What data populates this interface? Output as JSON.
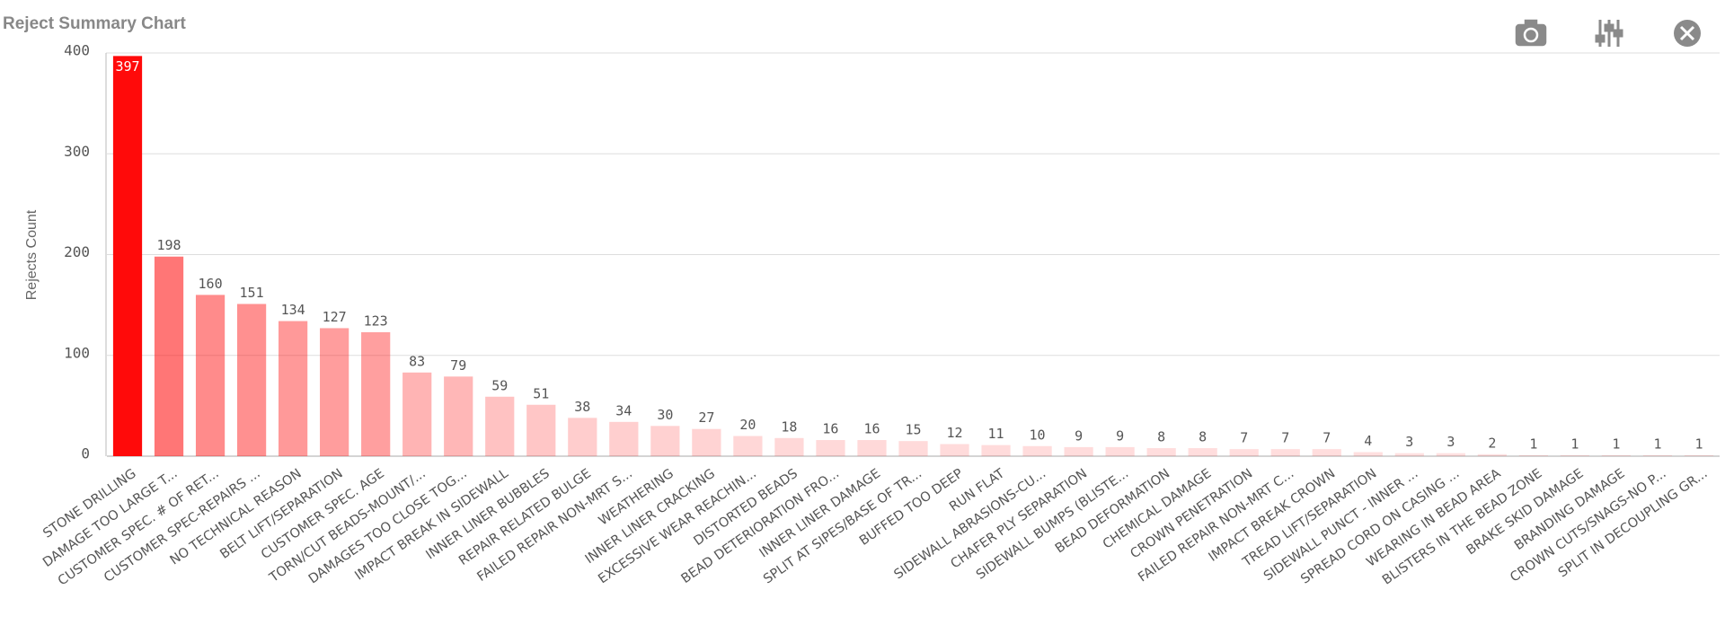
{
  "chart_data": {
    "type": "bar",
    "title": "Reject Summary Chart",
    "y_label": "Rejects Count",
    "categories": [
      "STONE DRILLING",
      "DAMAGE TOO LARGE T...",
      "CUSTOMER SPEC. # OF RET...",
      "CUSTOMER SPEC-REPAIRS ...",
      "NO TECHNICAL REASON",
      "BELT LIFT/SEPARATION",
      "CUSTOMER SPEC. AGE",
      "TORN/CUT BEADS-MOUNT/...",
      "DAMAGES TOO CLOSE TOG...",
      "IMPACT BREAK IN SIDEWALL",
      "INNER LINER BUBBLES",
      "REPAIR RELATED BULGE",
      "FAILED REPAIR NON-MRT S...",
      "WEATHERING",
      "INNER LINER CRACKING",
      "EXCESSIVE WEAR REACHIN...",
      "DISTORTED BEADS",
      "BEAD DETERIORATION FRO...",
      "INNER LINER DAMAGE",
      "SPLIT AT SIPES/BASE OF TR...",
      "BUFFED TOO DEEP",
      "RUN FLAT",
      "SIDEWALL ABRASIONS-CU...",
      "CHAFER PLY SEPARATION",
      "SIDEWALL BUMPS (BLISTE...",
      "BEAD DEFORMATION",
      "CHEMICAL DAMAGE",
      "CROWN PENETRATION",
      "FAILED REPAIR NON-MRT C...",
      "IMPACT BREAK CROWN",
      "TREAD LIFT/SEPARATION",
      "SIDEWALL PUNCT - INNER ...",
      "SPREAD CORD ON CASING ...",
      "WEARING IN BEAD AREA",
      "BLISTERS IN THE BEAD ZONE",
      "BRAKE SKID DAMAGE",
      "BRANDING DAMAGE",
      "CROWN CUTS/SNAGS-NO P...",
      "SPLIT IN DECOUPLING GR..."
    ],
    "values": [
      397,
      198,
      160,
      151,
      134,
      127,
      123,
      83,
      79,
      59,
      51,
      38,
      34,
      30,
      27,
      20,
      18,
      16,
      16,
      15,
      12,
      11,
      10,
      9,
      9,
      8,
      8,
      7,
      7,
      7,
      4,
      3,
      3,
      2,
      1,
      1,
      1,
      1,
      1
    ],
    "color": "#ff0a0a",
    "ylim": [
      0,
      400
    ],
    "yticks": [
      0,
      100,
      200,
      300,
      400
    ],
    "grid": true
  }
}
